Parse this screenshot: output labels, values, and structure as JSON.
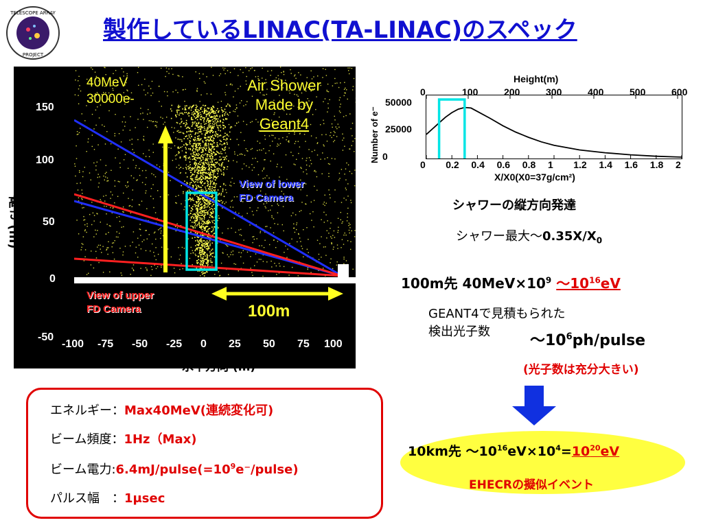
{
  "header": {
    "title": "製作しているLINAC(TA-LINAC)のスペック",
    "logo_text_top": "TELESCOPE ARRAY",
    "logo_text_bottom": "PROJECT",
    "logo_icon": "telescope-array-logo"
  },
  "simulation": {
    "beam_energy": "40MeV",
    "electrons": "30000e-",
    "air_shower_line1": "Air Shower",
    "air_shower_line2": "Made by",
    "air_shower_line3": "Geant4",
    "lower_cam_line1": "View of lower",
    "lower_cam_line2": "FD Camera",
    "upper_cam_line1": "View of upper",
    "upper_cam_line2": "FD Camera",
    "distance": "100m",
    "y_axis_label": "高さ (m)",
    "x_axis_label": "水平方向 (m)",
    "y_ticks": [
      "150",
      "100",
      "50",
      "0",
      "-50"
    ],
    "x_ticks": [
      "-100",
      "-75",
      "-50",
      "-25",
      "0",
      "25",
      "50",
      "75",
      "100"
    ]
  },
  "chart_data": {
    "type": "line",
    "title": "Height(m)",
    "xlabel": "X/X0(X0=37g/cm²)",
    "ylabel": "Number of e⁻",
    "xlim": [
      0,
      2
    ],
    "ylim": [
      0,
      55000
    ],
    "x_ticks": [
      "0",
      "0.2",
      "0.4",
      "0.6",
      "0.8",
      "1",
      "1.2",
      "1.4",
      "1.6",
      "1.8",
      "2"
    ],
    "y_ticks": [
      "0",
      "25000",
      "50000"
    ],
    "top_ticks": [
      "0",
      "100",
      "200",
      "300",
      "400",
      "500",
      "600"
    ],
    "series": [
      {
        "x": [
          0,
          0.05,
          0.1,
          0.15,
          0.2,
          0.25,
          0.3,
          0.35,
          0.4,
          0.5,
          0.6,
          0.7,
          0.8,
          0.9,
          1.0,
          1.2,
          1.4,
          1.6,
          1.8,
          2.0
        ],
        "values": [
          21000,
          26000,
          31000,
          36000,
          40000,
          43000,
          44500,
          44000,
          41000,
          35000,
          28500,
          23000,
          18500,
          14500,
          11500,
          7500,
          5000,
          3200,
          2000,
          1200
        ]
      }
    ],
    "highlight_x": [
      0.1,
      0.3
    ]
  },
  "right": {
    "caption": "シャワーの縦方向発達",
    "shower_max_prefix": "シャワー最大～",
    "shower_max_value": "0.35X/X",
    "shower_max_sub": "0",
    "energy_line_prefix": "100m先 40MeV×10",
    "energy_line_sup": "9",
    "energy_result_prefix": "～10",
    "energy_result_sup": "16",
    "energy_result_unit": "eV",
    "geant_line1": "GEANT4で見積もられた",
    "geant_line2": "検出光子数",
    "photon_prefix": "～10",
    "photon_sup": "6",
    "photon_unit": "ph/pulse",
    "photon_note": "(光子数は充分大きい)"
  },
  "result": {
    "prefix": "10km先 ～10",
    "sup1": "16",
    "mid": "eV×10",
    "sup2": "4",
    "eq": "=",
    "res_base": "10",
    "res_sup": "20",
    "res_unit": "eV",
    "label": "EHECRの擬似イベント"
  },
  "specs": {
    "energy_label": "エネルギー：",
    "energy_value": "Max40MeV(連続変化可)",
    "freq_label": "ビーム頻度：",
    "freq_value": "1Hz（Max)",
    "power_label": "ビーム電力:",
    "power_value_a": "6.4mJ/pulse(=10",
    "power_value_sup": "9",
    "power_value_b": "e⁻/pulse)",
    "width_label": "パルス幅　：",
    "width_value": "1μsec"
  },
  "colors": {
    "title": "#1010d0",
    "accent_red": "#e00000",
    "highlight": "#ffff40",
    "box_cyan": "#00e5e5",
    "arrow_blue": "#1030e0"
  }
}
